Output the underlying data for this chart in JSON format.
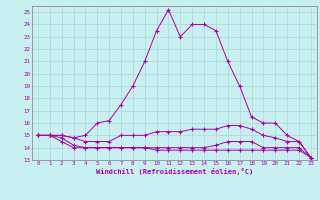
{
  "title": "Windchill (Refroidissement éolien,°C)",
  "bg_color": "#c8f0f0",
  "grid_color": "#a8d8d8",
  "line_color": "#aa00aa",
  "xlim": [
    -0.5,
    23.5
  ],
  "ylim": [
    13,
    25.5
  ],
  "xticks": [
    0,
    1,
    2,
    3,
    4,
    5,
    6,
    7,
    8,
    9,
    10,
    11,
    12,
    13,
    14,
    15,
    16,
    17,
    18,
    19,
    20,
    21,
    22,
    23
  ],
  "yticks": [
    13,
    14,
    15,
    16,
    17,
    18,
    19,
    20,
    21,
    22,
    23,
    24,
    25
  ],
  "series": [
    [
      15.0,
      15.0,
      15.0,
      14.8,
      15.0,
      16.0,
      16.2,
      17.5,
      19.0,
      21.0,
      23.5,
      25.2,
      23.0,
      24.0,
      24.0,
      23.5,
      21.0,
      19.0,
      16.5,
      16.0,
      16.0,
      15.0,
      14.5,
      13.2
    ],
    [
      15.0,
      15.0,
      15.0,
      14.8,
      14.5,
      14.5,
      14.5,
      15.0,
      15.0,
      15.0,
      15.3,
      15.3,
      15.3,
      15.5,
      15.5,
      15.5,
      15.8,
      15.8,
      15.5,
      15.0,
      14.8,
      14.5,
      14.5,
      13.2
    ],
    [
      15.0,
      15.0,
      14.8,
      14.2,
      14.0,
      14.0,
      14.0,
      14.0,
      14.0,
      14.0,
      14.0,
      14.0,
      14.0,
      14.0,
      14.0,
      14.2,
      14.5,
      14.5,
      14.5,
      14.0,
      14.0,
      14.0,
      14.0,
      13.2
    ],
    [
      15.0,
      15.0,
      14.5,
      14.0,
      14.0,
      14.0,
      14.0,
      14.0,
      14.0,
      14.0,
      13.8,
      13.8,
      13.8,
      13.8,
      13.8,
      13.8,
      13.8,
      13.8,
      13.8,
      13.8,
      13.8,
      13.8,
      13.8,
      13.2
    ]
  ]
}
